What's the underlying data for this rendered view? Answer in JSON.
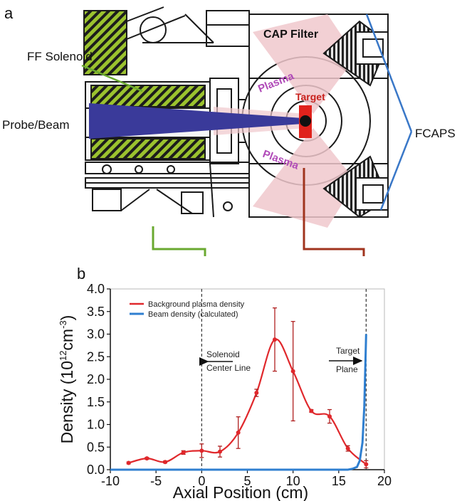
{
  "panel_a": {
    "label": "a",
    "callouts": {
      "ff_solenoid": "FF Solenoid",
      "probe_beam": "Probe/Beam",
      "cap_filter": "CAP Filter",
      "fcaps": "FCAPS",
      "target": "Target",
      "plasma_upper": "Plasma",
      "plasma_lower": "Plasma"
    },
    "colors": {
      "solenoid": "#9bc22e",
      "beam": "#3a3a9a",
      "plasma": "#f0c8cc",
      "target": "#e0221c",
      "fcaps_pointer": "#3a78c8",
      "solenoid_bracket": "#6aa930",
      "target_bracket": "#a0341e"
    }
  },
  "panel_b": {
    "label": "b"
  },
  "chart_data": {
    "type": "line",
    "xlabel": "Axial Position (cm)",
    "ylabel": "Density (10^12 cm^-3)",
    "ylabel_parts": {
      "pre": "Density (10",
      "exp1": "12",
      "mid": "cm",
      "exp2": "-3",
      "post": ")"
    },
    "xlim": [
      -10,
      20
    ],
    "ylim": [
      0,
      4.0
    ],
    "xticks": [
      -10,
      -5,
      0,
      5,
      10,
      15,
      20
    ],
    "xtick_labels": [
      "-10",
      "-5",
      "0",
      "5",
      "10",
      "15",
      "20"
    ],
    "yticks": [
      0,
      0.5,
      1.0,
      1.5,
      2.0,
      2.5,
      3.0,
      3.5,
      4.0
    ],
    "ytick_labels": [
      "0.0",
      "0.5",
      "1.0",
      "1.5",
      "2.0",
      "2.5",
      "3.0",
      "3.5",
      "4.0"
    ],
    "grid": false,
    "legend_position": "top-left",
    "series": [
      {
        "name": "Background plasma density",
        "color": "#e0282c",
        "x": [
          -8,
          -6,
          -4,
          -2,
          0,
          2,
          4,
          6,
          8,
          10,
          12,
          14,
          16,
          18
        ],
        "y": [
          0.15,
          0.25,
          0.17,
          0.38,
          0.42,
          0.4,
          0.82,
          1.7,
          2.88,
          2.18,
          1.3,
          1.18,
          0.47,
          0.12
        ],
        "error": [
          0.02,
          0.02,
          0.02,
          0.04,
          0.15,
          0.12,
          0.35,
          0.08,
          0.7,
          1.1,
          0.03,
          0.15,
          0.06,
          0.08
        ]
      },
      {
        "name": "Beam density (calculated)",
        "color": "#2f7fd0",
        "x": [
          -10,
          0,
          10,
          16,
          16.5,
          17,
          17.3,
          17.6,
          17.8,
          17.9,
          18.0
        ],
        "y": [
          0.0,
          0.0,
          0.0,
          0.0,
          0.02,
          0.06,
          0.2,
          0.6,
          1.4,
          2.2,
          3.0
        ]
      }
    ],
    "vlines": [
      0,
      18
    ],
    "annotations": [
      {
        "lines": [
          "Solenoid",
          "Center Line"
        ],
        "arrow": "left"
      },
      {
        "lines": [
          "Target",
          "Plane"
        ],
        "arrow": "right"
      }
    ]
  }
}
